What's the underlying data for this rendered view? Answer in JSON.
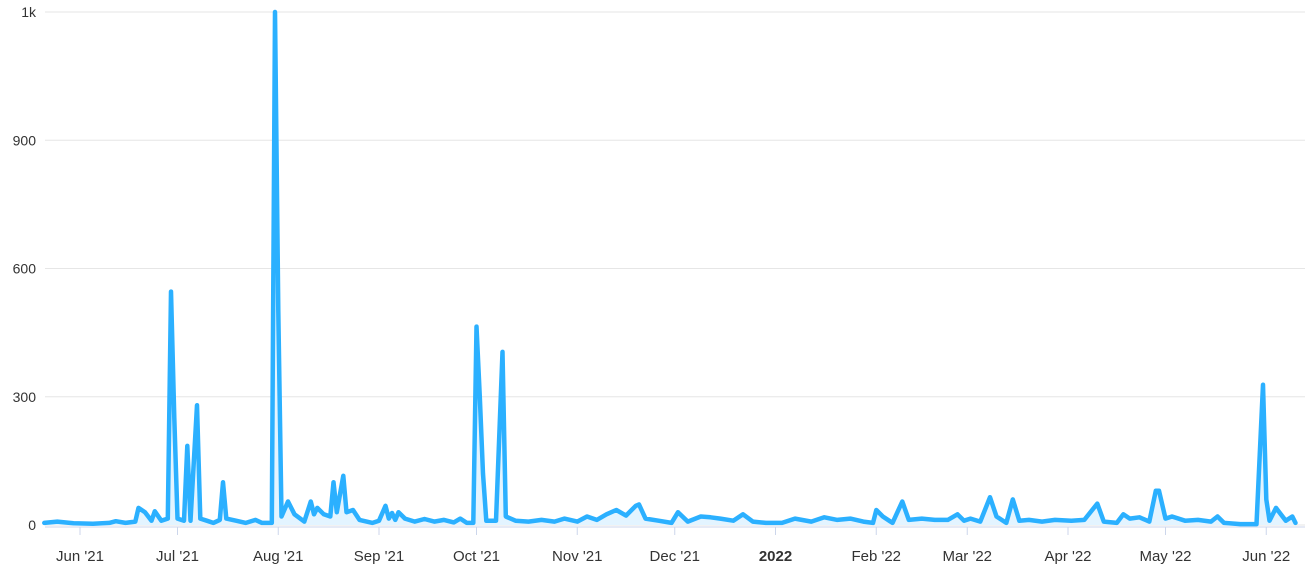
{
  "chart_data": {
    "type": "area",
    "title": "",
    "xlabel": "",
    "ylabel": "",
    "grid": true,
    "legend": "none",
    "colors": {
      "line": "#2bb0ff",
      "fill": "#e3f4ff",
      "grid": "#e6e6e6",
      "axis": "#ccd6eb"
    },
    "y_ticks": [
      {
        "value": 0,
        "label": "0"
      },
      {
        "value": 300,
        "label": "300"
      },
      {
        "value": 600,
        "label": "600"
      },
      {
        "value": 900,
        "label": "900"
      },
      {
        "value": 1200,
        "label": "1k"
      }
    ],
    "ylim": [
      0,
      1200
    ],
    "x_ticks": [
      {
        "date": "2021-06-01",
        "label": "Jun '21"
      },
      {
        "date": "2021-07-01",
        "label": "Jul '21"
      },
      {
        "date": "2021-08-01",
        "label": "Aug '21"
      },
      {
        "date": "2021-09-01",
        "label": "Sep '21"
      },
      {
        "date": "2021-10-01",
        "label": "Oct '21"
      },
      {
        "date": "2021-11-01",
        "label": "Nov '21"
      },
      {
        "date": "2021-12-01",
        "label": "Dec '21"
      },
      {
        "date": "2022-01-01",
        "label": "2022",
        "bold": true
      },
      {
        "date": "2022-02-01",
        "label": "Feb '22"
      },
      {
        "date": "2022-03-01",
        "label": "Mar '22"
      },
      {
        "date": "2022-04-01",
        "label": "Apr '22"
      },
      {
        "date": "2022-05-01",
        "label": "May '22"
      },
      {
        "date": "2022-06-01",
        "label": "Jun '22"
      }
    ],
    "xlim": [
      "2021-05-21",
      "2022-06-10"
    ],
    "points": [
      [
        "2021-05-21",
        5
      ],
      [
        "2021-05-25",
        8
      ],
      [
        "2021-05-30",
        4
      ],
      [
        "2021-06-05",
        3
      ],
      [
        "2021-06-10",
        5
      ],
      [
        "2021-06-12",
        9
      ],
      [
        "2021-06-15",
        5
      ],
      [
        "2021-06-18",
        8
      ],
      [
        "2021-06-19",
        40
      ],
      [
        "2021-06-21",
        30
      ],
      [
        "2021-06-23",
        10
      ],
      [
        "2021-06-24",
        32
      ],
      [
        "2021-06-26",
        10
      ],
      [
        "2021-06-28",
        15
      ],
      [
        "2021-06-29",
        546
      ],
      [
        "2021-06-30",
        250
      ],
      [
        "2021-07-01",
        15
      ],
      [
        "2021-07-03",
        10
      ],
      [
        "2021-07-04",
        185
      ],
      [
        "2021-07-05",
        10
      ],
      [
        "2021-07-07",
        280
      ],
      [
        "2021-07-08",
        15
      ],
      [
        "2021-07-10",
        10
      ],
      [
        "2021-07-12",
        5
      ],
      [
        "2021-07-14",
        12
      ],
      [
        "2021-07-15",
        100
      ],
      [
        "2021-07-16",
        15
      ],
      [
        "2021-07-19",
        10
      ],
      [
        "2021-07-22",
        5
      ],
      [
        "2021-07-25",
        12
      ],
      [
        "2021-07-27",
        5
      ],
      [
        "2021-07-30",
        5
      ],
      [
        "2021-07-31",
        1200
      ],
      [
        "2021-08-01",
        500
      ],
      [
        "2021-08-02",
        20
      ],
      [
        "2021-08-04",
        55
      ],
      [
        "2021-08-06",
        25
      ],
      [
        "2021-08-09",
        8
      ],
      [
        "2021-08-11",
        55
      ],
      [
        "2021-08-12",
        25
      ],
      [
        "2021-08-13",
        40
      ],
      [
        "2021-08-15",
        25
      ],
      [
        "2021-08-17",
        20
      ],
      [
        "2021-08-18",
        100
      ],
      [
        "2021-08-19",
        30
      ],
      [
        "2021-08-21",
        115
      ],
      [
        "2021-08-22",
        30
      ],
      [
        "2021-08-24",
        35
      ],
      [
        "2021-08-26",
        12
      ],
      [
        "2021-08-30",
        5
      ],
      [
        "2021-09-01",
        10
      ],
      [
        "2021-09-03",
        45
      ],
      [
        "2021-09-04",
        15
      ],
      [
        "2021-09-05",
        28
      ],
      [
        "2021-09-06",
        12
      ],
      [
        "2021-09-07",
        30
      ],
      [
        "2021-09-09",
        15
      ],
      [
        "2021-09-12",
        8
      ],
      [
        "2021-09-15",
        14
      ],
      [
        "2021-09-18",
        8
      ],
      [
        "2021-09-21",
        12
      ],
      [
        "2021-09-24",
        6
      ],
      [
        "2021-09-26",
        15
      ],
      [
        "2021-09-28",
        5
      ],
      [
        "2021-09-30",
        5
      ],
      [
        "2021-10-01",
        464
      ],
      [
        "2021-10-02",
        300
      ],
      [
        "2021-10-03",
        120
      ],
      [
        "2021-10-04",
        10
      ],
      [
        "2021-10-07",
        10
      ],
      [
        "2021-10-09",
        405
      ],
      [
        "2021-10-10",
        20
      ],
      [
        "2021-10-13",
        10
      ],
      [
        "2021-10-17",
        8
      ],
      [
        "2021-10-21",
        12
      ],
      [
        "2021-10-25",
        8
      ],
      [
        "2021-10-28",
        15
      ],
      [
        "2021-11-01",
        8
      ],
      [
        "2021-11-04",
        20
      ],
      [
        "2021-11-07",
        12
      ],
      [
        "2021-11-10",
        25
      ],
      [
        "2021-11-13",
        35
      ],
      [
        "2021-11-16",
        22
      ],
      [
        "2021-11-19",
        45
      ],
      [
        "2021-11-20",
        48
      ],
      [
        "2021-11-22",
        15
      ],
      [
        "2021-11-26",
        10
      ],
      [
        "2021-11-30",
        5
      ],
      [
        "2021-12-02",
        30
      ],
      [
        "2021-12-05",
        8
      ],
      [
        "2021-12-09",
        20
      ],
      [
        "2021-12-12",
        18
      ],
      [
        "2021-12-15",
        15
      ],
      [
        "2021-12-19",
        10
      ],
      [
        "2021-12-22",
        25
      ],
      [
        "2021-12-25",
        8
      ],
      [
        "2021-12-29",
        5
      ],
      [
        "2022-01-03",
        5
      ],
      [
        "2022-01-07",
        15
      ],
      [
        "2022-01-12",
        8
      ],
      [
        "2022-01-16",
        18
      ],
      [
        "2022-01-20",
        12
      ],
      [
        "2022-01-24",
        15
      ],
      [
        "2022-01-28",
        8
      ],
      [
        "2022-01-31",
        5
      ],
      [
        "2022-02-01",
        35
      ],
      [
        "2022-02-03",
        20
      ],
      [
        "2022-02-06",
        5
      ],
      [
        "2022-02-09",
        55
      ],
      [
        "2022-02-11",
        12
      ],
      [
        "2022-02-15",
        15
      ],
      [
        "2022-02-19",
        12
      ],
      [
        "2022-02-23",
        12
      ],
      [
        "2022-02-26",
        25
      ],
      [
        "2022-02-28",
        10
      ],
      [
        "2022-03-02",
        15
      ],
      [
        "2022-03-05",
        8
      ],
      [
        "2022-03-08",
        65
      ],
      [
        "2022-03-10",
        20
      ],
      [
        "2022-03-13",
        5
      ],
      [
        "2022-03-15",
        60
      ],
      [
        "2022-03-17",
        10
      ],
      [
        "2022-03-20",
        12
      ],
      [
        "2022-03-24",
        8
      ],
      [
        "2022-03-28",
        12
      ],
      [
        "2022-04-02",
        10
      ],
      [
        "2022-04-06",
        12
      ],
      [
        "2022-04-10",
        50
      ],
      [
        "2022-04-12",
        8
      ],
      [
        "2022-04-16",
        5
      ],
      [
        "2022-04-18",
        25
      ],
      [
        "2022-04-20",
        15
      ],
      [
        "2022-04-23",
        18
      ],
      [
        "2022-04-26",
        8
      ],
      [
        "2022-04-28",
        80
      ],
      [
        "2022-04-29",
        80
      ],
      [
        "2022-05-01",
        15
      ],
      [
        "2022-05-03",
        20
      ],
      [
        "2022-05-07",
        10
      ],
      [
        "2022-05-11",
        12
      ],
      [
        "2022-05-15",
        8
      ],
      [
        "2022-05-17",
        20
      ],
      [
        "2022-05-19",
        5
      ],
      [
        "2022-05-24",
        2
      ],
      [
        "2022-05-29",
        2
      ],
      [
        "2022-05-31",
        328
      ],
      [
        "2022-06-01",
        60
      ],
      [
        "2022-06-02",
        10
      ],
      [
        "2022-06-04",
        40
      ],
      [
        "2022-06-05",
        30
      ],
      [
        "2022-06-07",
        10
      ],
      [
        "2022-06-09",
        20
      ],
      [
        "2022-06-10",
        5
      ]
    ]
  }
}
